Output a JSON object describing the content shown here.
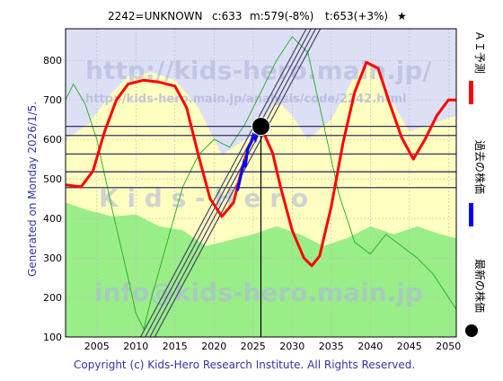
{
  "header": {
    "code_name": "2242=UNKNOWN",
    "current": "c:633",
    "mean": "m:579(-8%)",
    "target": "t:653(+3%)",
    "star": "★"
  },
  "side_label": "Generated on Monday 2026/1/5.",
  "footer": "Copyright (c) Kids-Hero Research Institute. All Rights Reserved.",
  "watermarks": {
    "main_url": "http://kids-hero.main.jp/",
    "analysis_url": "http://kids-hero.main.jp/analysis/code/2242.html",
    "email": "info@kids-hero.main.jp",
    "logo_text": "K i d s - H e r o"
  },
  "legend": {
    "ai_forecast": "ＡＩ予測",
    "past_price": "過去の株価",
    "latest_price": "最新の株価"
  },
  "colors": {
    "forecast": "#ff0000",
    "past": "#0000ff",
    "latest": "#000000",
    "green_fill": "#99ee88",
    "yellow_fill": "#ffffc0",
    "blue_band": "#dde0f5",
    "hline": "#333366",
    "diag": "#444466",
    "thin_green": "#22aa22"
  },
  "chart_data": {
    "type": "line",
    "xlim": [
      2001,
      2051
    ],
    "ylim": [
      100,
      880
    ],
    "x_ticks": [
      2005,
      2010,
      2015,
      2020,
      2025,
      2030,
      2035,
      2040,
      2045,
      2050
    ],
    "y_ticks": [
      100,
      200,
      300,
      400,
      500,
      600,
      700,
      800
    ],
    "grid": true,
    "horizontal_levels": [
      633,
      610,
      563,
      518,
      478
    ],
    "latest_point": {
      "x": 2026.0,
      "y": 633
    },
    "series": [
      {
        "role": "forecast",
        "points": [
          [
            2001,
            485
          ],
          [
            2003,
            480
          ],
          [
            2004.5,
            520
          ],
          [
            2006,
            620
          ],
          [
            2007.5,
            700
          ],
          [
            2009,
            740
          ],
          [
            2011,
            750
          ],
          [
            2013,
            745
          ],
          [
            2015,
            735
          ],
          [
            2016.5,
            680
          ],
          [
            2018,
            560
          ],
          [
            2019.5,
            450
          ],
          [
            2021,
            405
          ],
          [
            2022.5,
            440
          ],
          [
            2023.5,
            520
          ],
          [
            2024.5,
            585
          ],
          [
            2025.5,
            615
          ],
          [
            2026.5,
            610
          ],
          [
            2027.5,
            565
          ],
          [
            2028.5,
            480
          ],
          [
            2030,
            370
          ],
          [
            2031.5,
            300
          ],
          [
            2032.5,
            280
          ],
          [
            2033.5,
            305
          ],
          [
            2035,
            430
          ],
          [
            2036.5,
            590
          ],
          [
            2038,
            720
          ],
          [
            2039.5,
            795
          ],
          [
            2041,
            780
          ],
          [
            2042.5,
            690
          ],
          [
            2044,
            605
          ],
          [
            2045.5,
            550
          ],
          [
            2047,
            600
          ],
          [
            2048.5,
            660
          ],
          [
            2050,
            700
          ],
          [
            2051,
            700
          ]
        ]
      },
      {
        "role": "past",
        "points": [
          [
            2023.0,
            470
          ],
          [
            2023.4,
            505
          ],
          [
            2023.8,
            540
          ],
          [
            2024.0,
            530
          ],
          [
            2024.3,
            575
          ],
          [
            2024.7,
            590
          ],
          [
            2025.0,
            610
          ],
          [
            2025.3,
            600
          ],
          [
            2025.6,
            625
          ],
          [
            2026.0,
            633
          ]
        ]
      },
      {
        "role": "thin_green",
        "points": [
          [
            2001,
            700
          ],
          [
            2002,
            740
          ],
          [
            2003.5,
            690
          ],
          [
            2005,
            600
          ],
          [
            2007,
            420
          ],
          [
            2009,
            250
          ],
          [
            2010,
            160
          ],
          [
            2011,
            120
          ],
          [
            2012,
            200
          ],
          [
            2014,
            340
          ],
          [
            2016,
            480
          ],
          [
            2018,
            560
          ],
          [
            2020,
            600
          ],
          [
            2022,
            580
          ],
          [
            2024,
            640
          ],
          [
            2026,
            720
          ],
          [
            2028,
            800
          ],
          [
            2030,
            860
          ],
          [
            2032,
            820
          ],
          [
            2034,
            640
          ],
          [
            2036,
            460
          ],
          [
            2038,
            340
          ],
          [
            2040,
            310
          ],
          [
            2042,
            360
          ],
          [
            2044,
            330
          ],
          [
            2046,
            300
          ],
          [
            2048,
            260
          ],
          [
            2050,
            200
          ],
          [
            2051,
            170
          ]
        ]
      },
      {
        "role": "green_upper",
        "points": [
          [
            2001,
            440
          ],
          [
            2004,
            420
          ],
          [
            2007,
            405
          ],
          [
            2010,
            410
          ],
          [
            2013,
            380
          ],
          [
            2016,
            370
          ],
          [
            2019,
            330
          ],
          [
            2022,
            345
          ],
          [
            2025,
            360
          ],
          [
            2028,
            380
          ],
          [
            2031,
            360
          ],
          [
            2034,
            330
          ],
          [
            2037,
            350
          ],
          [
            2040,
            380
          ],
          [
            2043,
            360
          ],
          [
            2046,
            380
          ],
          [
            2049,
            360
          ],
          [
            2051,
            350
          ]
        ]
      },
      {
        "role": "yellow_upper",
        "points": [
          [
            2001,
            600
          ],
          [
            2004,
            640
          ],
          [
            2007,
            720
          ],
          [
            2009,
            760
          ],
          [
            2012,
            770
          ],
          [
            2015,
            750
          ],
          [
            2018,
            680
          ],
          [
            2021,
            560
          ],
          [
            2024,
            600
          ],
          [
            2026,
            640
          ],
          [
            2028,
            700
          ],
          [
            2030,
            660
          ],
          [
            2032,
            600
          ],
          [
            2035,
            650
          ],
          [
            2038,
            760
          ],
          [
            2040,
            800
          ],
          [
            2042,
            720
          ],
          [
            2045,
            620
          ],
          [
            2048,
            640
          ],
          [
            2051,
            660
          ]
        ]
      }
    ],
    "channel_lines": [
      {
        "x1": 2010.6,
        "y1": 100,
        "x2": 2031.8,
        "y2": 880
      },
      {
        "x1": 2011.2,
        "y1": 100,
        "x2": 2032.4,
        "y2": 880
      },
      {
        "x1": 2011.8,
        "y1": 100,
        "x2": 2033.0,
        "y2": 880
      },
      {
        "x1": 2012.4,
        "y1": 100,
        "x2": 2033.6,
        "y2": 880
      }
    ]
  }
}
